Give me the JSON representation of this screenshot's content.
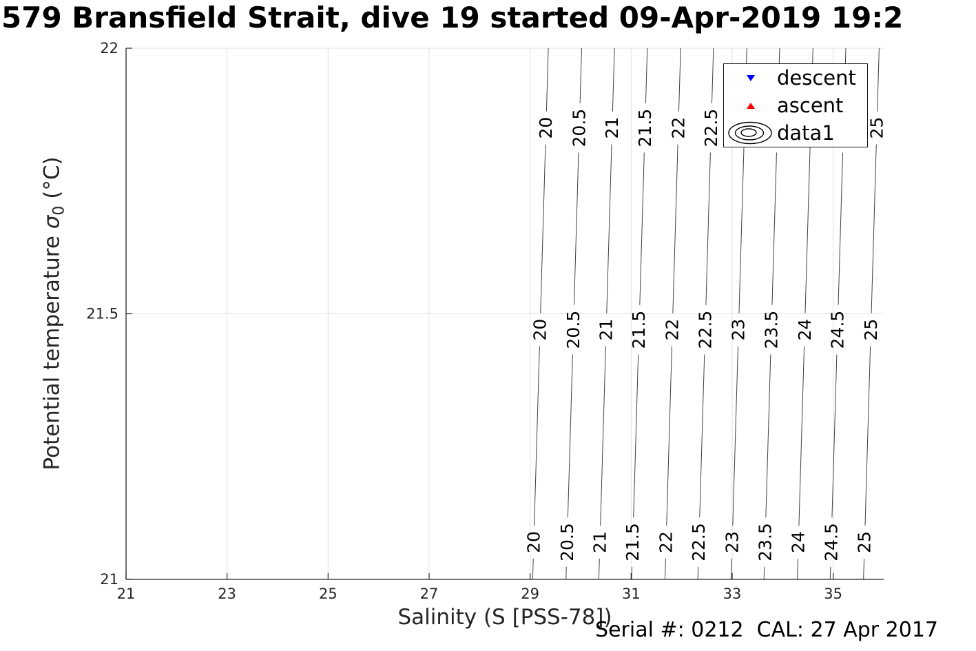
{
  "figure": {
    "title": "579 Bransfield Strait, dive 19 started 09-Apr-2019 19:2",
    "annotation": "Serial #: 0212  CAL: 27 Apr 2017"
  },
  "chart_data": {
    "type": "contour",
    "title": "579 Bransfield Strait, dive 19 started 09-Apr-2019 19:2",
    "xlabel": "Salinity (S [PSS-78])",
    "ylabel": "Potential temperature σ_0 (°C)",
    "ylabel_parts": {
      "before": "Potential temperature ",
      "symbol": "σ",
      "subscript": "0",
      "after": " (°C)"
    },
    "xlim": [
      21,
      36
    ],
    "ylim": [
      21,
      22
    ],
    "xticks": [
      21,
      23,
      25,
      27,
      29,
      31,
      33,
      35
    ],
    "yticks": [
      21,
      21.5,
      22
    ],
    "grid": true,
    "contours": {
      "variable": "potential density sigma-0 isopycnals",
      "levels": [
        20,
        20.5,
        21,
        21.5,
        22,
        22.5,
        23,
        23.5,
        24,
        24.5,
        25
      ],
      "labels": [
        "20",
        "20.5",
        "21",
        "21.5",
        "22",
        "22.5",
        "23",
        "23.5",
        "24",
        "24.5",
        "25"
      ],
      "salinity_at_T21": [
        29.05,
        29.71,
        30.36,
        31.01,
        31.67,
        32.32,
        32.98,
        33.63,
        34.29,
        34.94,
        35.6
      ],
      "dS_dT": 0.31,
      "label_rows_T": [
        21.85,
        21.47,
        21.07
      ]
    },
    "legend": {
      "position": "northeast",
      "entries": [
        {
          "label": "descent",
          "marker": "triangle-down",
          "color": "#0000ff"
        },
        {
          "label": "ascent",
          "marker": "triangle-up",
          "color": "#ff0000"
        },
        {
          "label": "data1",
          "marker": "contour-rings",
          "color": "#000000"
        }
      ]
    },
    "series": [
      {
        "name": "descent",
        "type": "scatter",
        "marker": "triangle-down",
        "color": "#0000ff",
        "points": []
      },
      {
        "name": "ascent",
        "type": "scatter",
        "marker": "triangle-up",
        "color": "#ff0000",
        "points": []
      }
    ],
    "style": {
      "grid_color": "#e2e2e2",
      "axis_color": "#262626",
      "contour_color": "#404040",
      "tick_label_color": "#262626",
      "contour_label_color": "#000000"
    }
  }
}
